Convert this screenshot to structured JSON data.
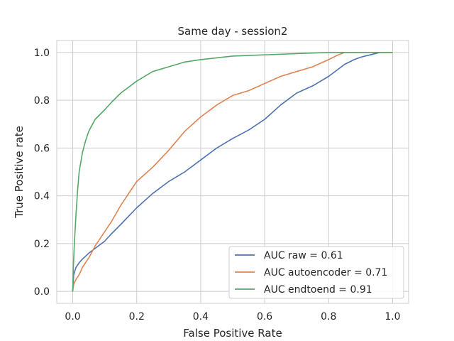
{
  "chart_data": {
    "type": "line",
    "title": "Same day - session2",
    "xlabel": "False Positive Rate",
    "ylabel": "True Positive rate",
    "xlim": [
      -0.05,
      1.05
    ],
    "ylim": [
      -0.05,
      1.05
    ],
    "xticks": [
      0.0,
      0.2,
      0.4,
      0.6,
      0.8,
      1.0
    ],
    "yticks": [
      0.0,
      0.2,
      0.4,
      0.6,
      0.8,
      1.0
    ],
    "xtick_labels": [
      "0.0",
      "0.2",
      "0.4",
      "0.6",
      "0.8",
      "1.0"
    ],
    "ytick_labels": [
      "0.0",
      "0.2",
      "0.4",
      "0.6",
      "0.8",
      "1.0"
    ],
    "grid": true,
    "legend_position": "lower-right",
    "series": [
      {
        "name": "AUC raw = 0.61",
        "color": "#4c72b0",
        "x": [
          0,
          0.003,
          0.01,
          0.02,
          0.03,
          0.05,
          0.07,
          0.1,
          0.12,
          0.15,
          0.2,
          0.25,
          0.3,
          0.35,
          0.4,
          0.45,
          0.5,
          0.55,
          0.6,
          0.65,
          0.7,
          0.75,
          0.8,
          0.85,
          0.88,
          0.9,
          0.93,
          0.96,
          0.98,
          1.0
        ],
        "y": [
          0,
          0.07,
          0.1,
          0.12,
          0.135,
          0.16,
          0.18,
          0.21,
          0.24,
          0.28,
          0.35,
          0.41,
          0.46,
          0.5,
          0.55,
          0.6,
          0.64,
          0.675,
          0.72,
          0.78,
          0.83,
          0.86,
          0.9,
          0.95,
          0.97,
          0.98,
          0.99,
          1.0,
          1.0,
          1.0
        ]
      },
      {
        "name": "AUC autoencoder = 0.71",
        "color": "#dd8452",
        "x": [
          0,
          0.003,
          0.01,
          0.02,
          0.03,
          0.05,
          0.07,
          0.1,
          0.12,
          0.15,
          0.2,
          0.25,
          0.3,
          0.35,
          0.4,
          0.45,
          0.5,
          0.55,
          0.6,
          0.65,
          0.7,
          0.75,
          0.8,
          0.83,
          0.85,
          0.9,
          1.0
        ],
        "y": [
          0,
          0.03,
          0.05,
          0.07,
          0.1,
          0.14,
          0.19,
          0.25,
          0.29,
          0.36,
          0.46,
          0.52,
          0.59,
          0.67,
          0.73,
          0.78,
          0.82,
          0.84,
          0.87,
          0.9,
          0.92,
          0.94,
          0.97,
          0.99,
          1.0,
          1.0,
          1.0
        ]
      },
      {
        "name": "AUC endtoend = 0.91",
        "color": "#55a868",
        "x": [
          0,
          0.002,
          0.005,
          0.01,
          0.015,
          0.02,
          0.03,
          0.04,
          0.05,
          0.07,
          0.1,
          0.12,
          0.15,
          0.2,
          0.25,
          0.3,
          0.35,
          0.4,
          0.5,
          0.6,
          0.7,
          0.8,
          0.9,
          1.0
        ],
        "y": [
          0,
          0.1,
          0.2,
          0.32,
          0.42,
          0.5,
          0.58,
          0.63,
          0.67,
          0.72,
          0.76,
          0.79,
          0.83,
          0.88,
          0.92,
          0.94,
          0.96,
          0.97,
          0.985,
          0.99,
          0.995,
          1.0,
          1.0,
          1.0
        ]
      }
    ]
  }
}
